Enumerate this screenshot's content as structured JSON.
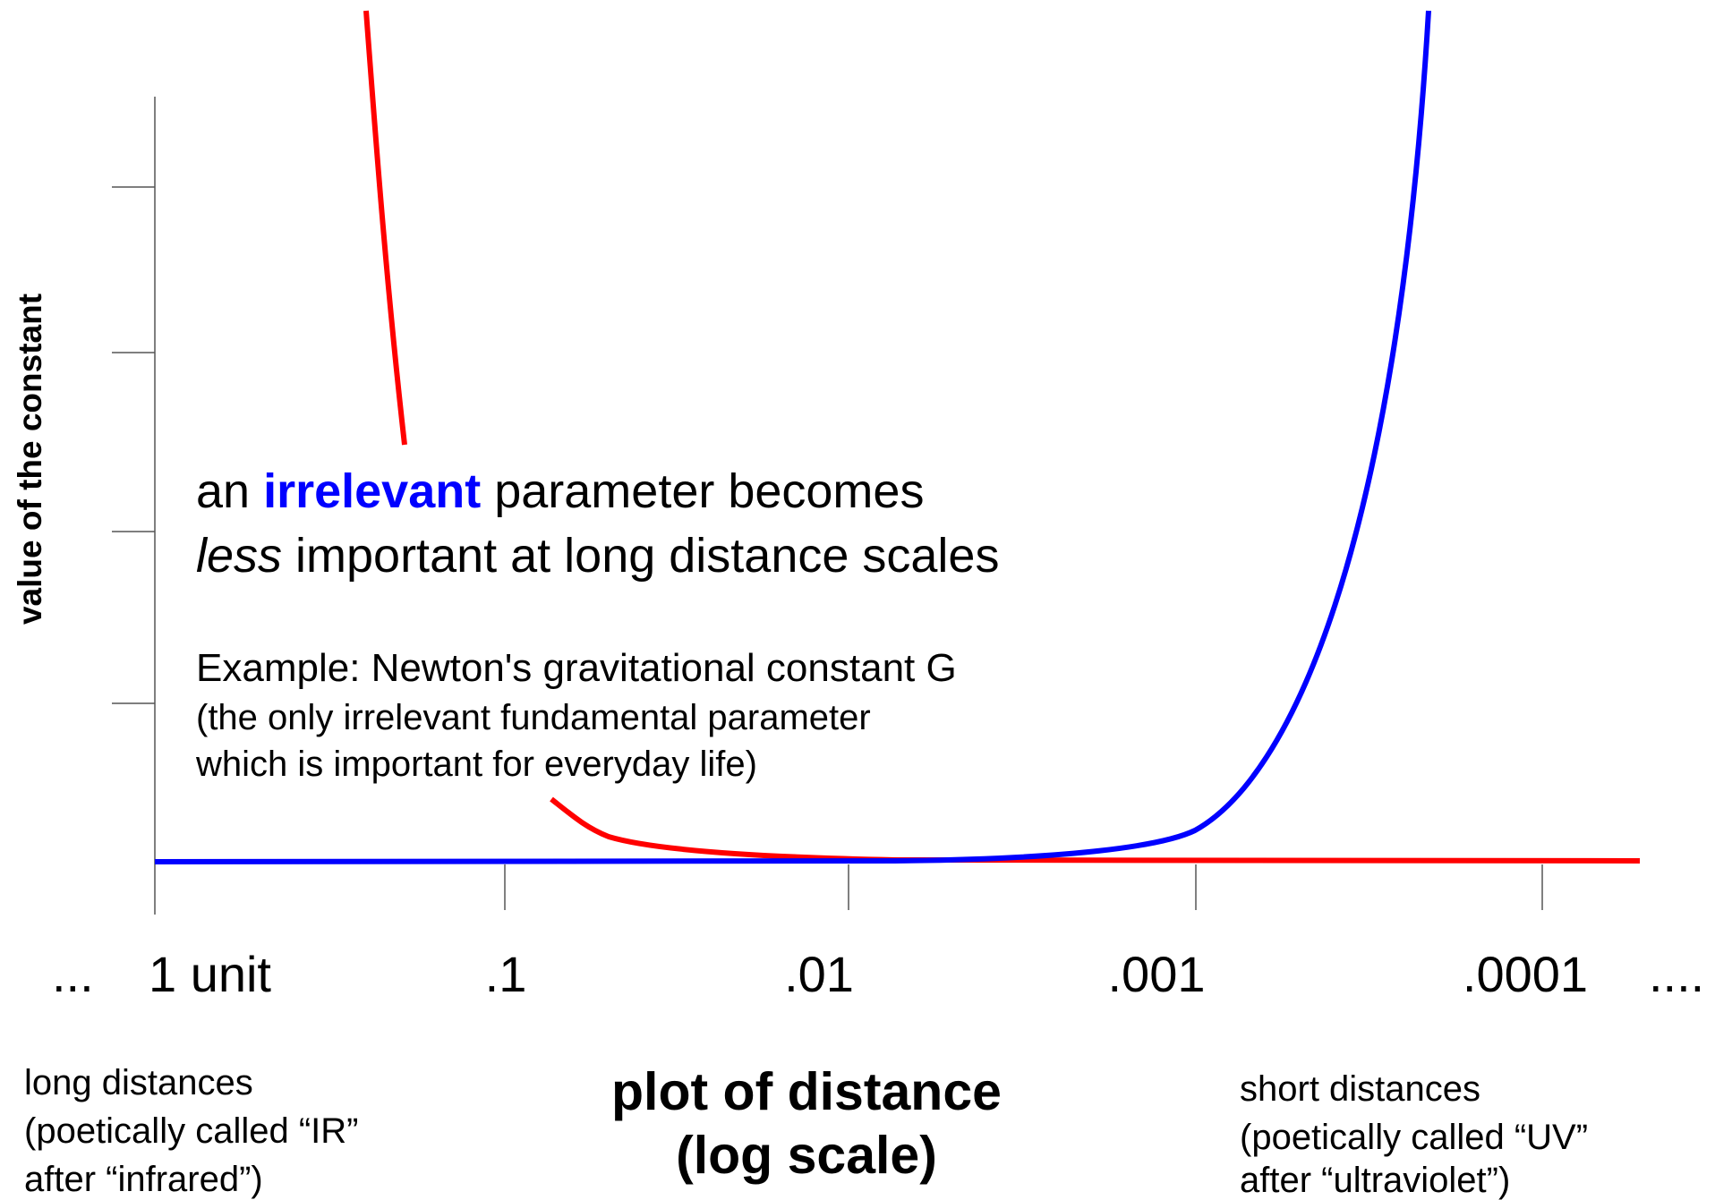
{
  "y_axis_label": "value of the constant",
  "x_ticks": {
    "start": "...",
    "labels": [
      "1 unit",
      ".1",
      ".01",
      ".001",
      ".0001"
    ],
    "end": "...."
  },
  "headline": {
    "line1": [
      "an ",
      "irrelevant",
      " parameter becomes"
    ],
    "line2": [
      "less",
      " important at long distance scales"
    ]
  },
  "example": {
    "title": "Example: Newton's gravitational constant G",
    "lines": [
      "(the only irrelevant fundamental parameter",
      "which is important for everyday life)"
    ]
  },
  "x_axis_label": [
    "plot of distance",
    "(log scale)"
  ],
  "left_note": [
    "long distances",
    "(poetically called “IR”",
    "after “infrared”)"
  ],
  "right_note": [
    "short distances",
    "(poetically called “UV”",
    "after “ultraviolet”)"
  ]
}
